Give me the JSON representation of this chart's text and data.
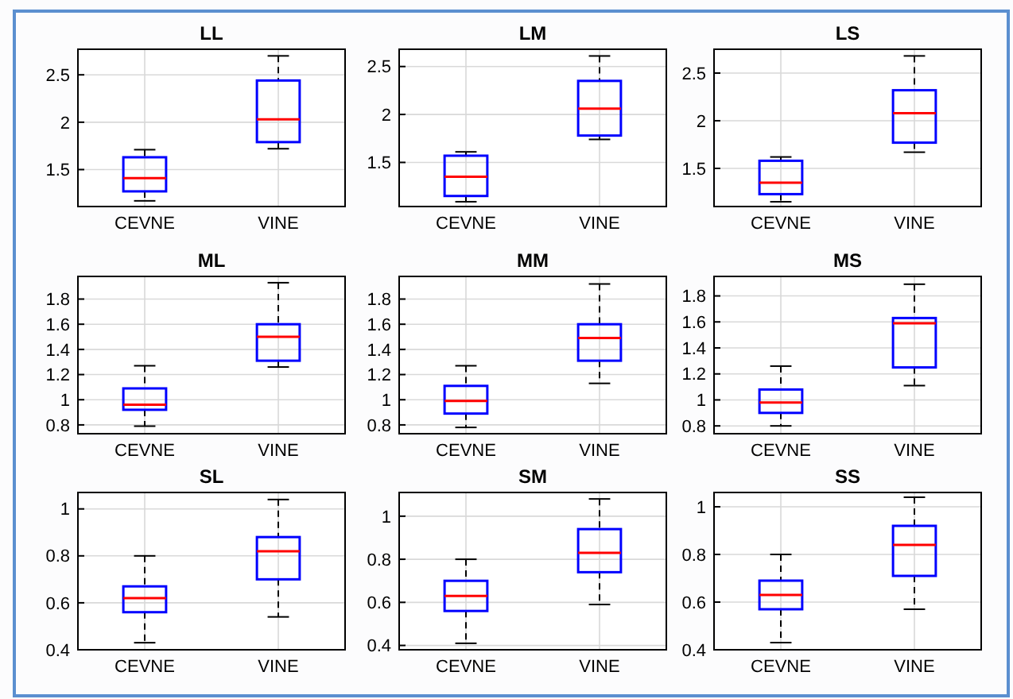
{
  "chart_data": [
    {
      "type": "box",
      "title": "LL",
      "categories": [
        "CEVNE",
        "VINE"
      ],
      "ylim": [
        1.11,
        2.77
      ],
      "yticks": [
        1.5,
        2,
        2.5
      ],
      "grid": true,
      "series": [
        {
          "color": "#0000ff",
          "boxes": [
            {
              "low": 1.17,
              "q1": 1.27,
              "median": 1.41,
              "q3": 1.63,
              "high": 1.71
            },
            {
              "low": 1.72,
              "q1": 1.79,
              "median": 2.03,
              "q3": 2.44,
              "high": 2.7
            }
          ]
        }
      ]
    },
    {
      "type": "box",
      "title": "LM",
      "categories": [
        "CEVNE",
        "VINE"
      ],
      "ylim": [
        1.04,
        2.68
      ],
      "yticks": [
        1.5,
        2,
        2.5
      ],
      "grid": true,
      "series": [
        {
          "color": "#0000ff",
          "boxes": [
            {
              "low": 1.09,
              "q1": 1.15,
              "median": 1.35,
              "q3": 1.57,
              "high": 1.61
            },
            {
              "low": 1.74,
              "q1": 1.78,
              "median": 2.06,
              "q3": 2.35,
              "high": 2.61
            }
          ]
        }
      ]
    },
    {
      "type": "box",
      "title": "LS",
      "categories": [
        "CEVNE",
        "VINE"
      ],
      "ylim": [
        1.1,
        2.75
      ],
      "yticks": [
        1.5,
        2,
        2.5
      ],
      "grid": true,
      "series": [
        {
          "color": "#0000ff",
          "boxes": [
            {
              "low": 1.15,
              "q1": 1.23,
              "median": 1.35,
              "q3": 1.58,
              "high": 1.62
            },
            {
              "low": 1.67,
              "q1": 1.77,
              "median": 2.08,
              "q3": 2.32,
              "high": 2.68
            }
          ]
        }
      ]
    },
    {
      "type": "box",
      "title": "ML",
      "categories": [
        "CEVNE",
        "VINE"
      ],
      "ylim": [
        0.73,
        1.98
      ],
      "yticks": [
        0.8,
        1,
        1.2,
        1.4,
        1.6,
        1.8
      ],
      "grid": true,
      "series": [
        {
          "color": "#0000ff",
          "boxes": [
            {
              "low": 0.79,
              "q1": 0.92,
              "median": 0.96,
              "q3": 1.09,
              "high": 1.27
            },
            {
              "low": 1.26,
              "q1": 1.31,
              "median": 1.5,
              "q3": 1.6,
              "high": 1.93
            }
          ]
        }
      ]
    },
    {
      "type": "box",
      "title": "MM",
      "categories": [
        "CEVNE",
        "VINE"
      ],
      "ylim": [
        0.73,
        1.98
      ],
      "yticks": [
        0.8,
        1,
        1.2,
        1.4,
        1.6,
        1.8
      ],
      "grid": true,
      "series": [
        {
          "color": "#0000ff",
          "boxes": [
            {
              "low": 0.78,
              "q1": 0.89,
              "median": 0.99,
              "q3": 1.11,
              "high": 1.27
            },
            {
              "low": 1.13,
              "q1": 1.31,
              "median": 1.49,
              "q3": 1.6,
              "high": 1.92
            }
          ]
        }
      ]
    },
    {
      "type": "box",
      "title": "MS",
      "categories": [
        "CEVNE",
        "VINE"
      ],
      "ylim": [
        0.74,
        1.95
      ],
      "yticks": [
        0.8,
        1,
        1.2,
        1.4,
        1.6,
        1.8
      ],
      "grid": true,
      "series": [
        {
          "color": "#0000ff",
          "boxes": [
            {
              "low": 0.8,
              "q1": 0.9,
              "median": 0.98,
              "q3": 1.08,
              "high": 1.26
            },
            {
              "low": 1.11,
              "q1": 1.25,
              "median": 1.59,
              "q3": 1.63,
              "high": 1.89
            }
          ]
        }
      ]
    },
    {
      "type": "box",
      "title": "SL",
      "categories": [
        "CEVNE",
        "VINE"
      ],
      "ylim": [
        0.4,
        1.07
      ],
      "yticks": [
        0.4,
        0.6,
        0.8,
        1
      ],
      "grid": true,
      "series": [
        {
          "color": "#0000ff",
          "boxes": [
            {
              "low": 0.43,
              "q1": 0.56,
              "median": 0.62,
              "q3": 0.67,
              "high": 0.8
            },
            {
              "low": 0.54,
              "q1": 0.7,
              "median": 0.82,
              "q3": 0.88,
              "high": 1.04
            }
          ]
        }
      ]
    },
    {
      "type": "box",
      "title": "SM",
      "categories": [
        "CEVNE",
        "VINE"
      ],
      "ylim": [
        0.38,
        1.11
      ],
      "yticks": [
        0.4,
        0.6,
        0.8,
        1
      ],
      "grid": true,
      "series": [
        {
          "color": "#0000ff",
          "boxes": [
            {
              "low": 0.41,
              "q1": 0.56,
              "median": 0.63,
              "q3": 0.7,
              "high": 0.8
            },
            {
              "low": 0.59,
              "q1": 0.74,
              "median": 0.83,
              "q3": 0.94,
              "high": 1.08
            }
          ]
        }
      ]
    },
    {
      "type": "box",
      "title": "SS",
      "categories": [
        "CEVNE",
        "VINE"
      ],
      "ylim": [
        0.4,
        1.06
      ],
      "yticks": [
        0.4,
        0.6,
        0.8,
        1
      ],
      "grid": true,
      "series": [
        {
          "color": "#0000ff",
          "boxes": [
            {
              "low": 0.43,
              "q1": 0.57,
              "median": 0.63,
              "q3": 0.69,
              "high": 0.8
            },
            {
              "low": 0.57,
              "q1": 0.71,
              "median": 0.84,
              "q3": 0.92,
              "high": 1.04
            }
          ]
        }
      ]
    }
  ]
}
